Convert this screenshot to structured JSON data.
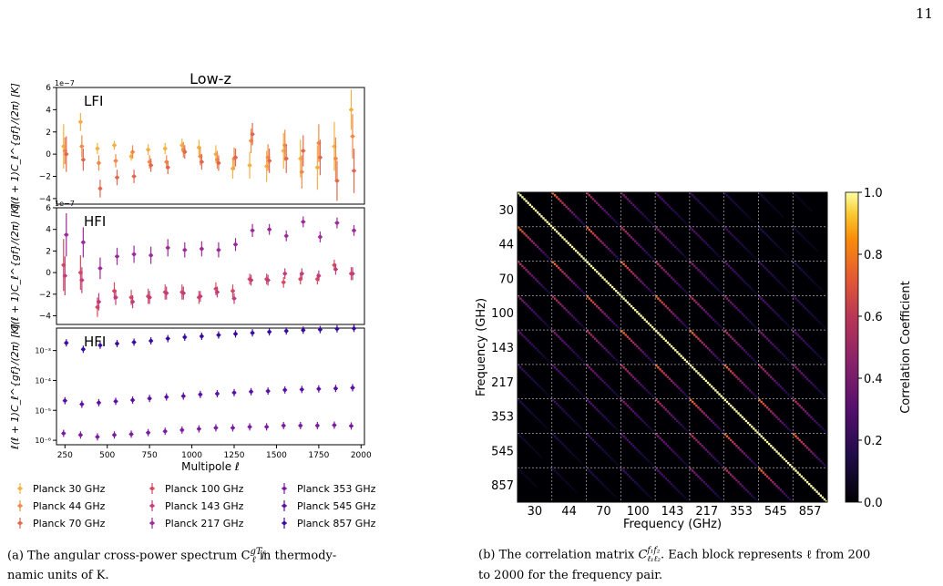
{
  "page": {
    "number": "11"
  },
  "colors": {
    "p30": "#f5b043",
    "p44": "#f08a47",
    "p70": "#e0684f",
    "p100": "#d34a5f",
    "p143": "#c03c7c",
    "p217": "#9d2a9b",
    "p353": "#7b1aa2",
    "p545": "#5a0ea5",
    "p857": "#3a0aa0"
  },
  "left_figure": {
    "title": "Low-z",
    "panels": [
      {
        "label": "LFI",
        "exp": "1e−7",
        "ylabel": "ℓ(ℓ + 1)C_ℓ^{gf}/(2π) [K]"
      },
      {
        "label": "HFI",
        "exp": "1e−7",
        "ylabel": "ℓ(ℓ + 1)C_ℓ^{gf}/(2π) [K]"
      },
      {
        "label": "HFI",
        "exp": "",
        "ylabel": "ℓ(ℓ + 1)C_ℓ^{gf}/(2π) [K]"
      }
    ],
    "xlabel": "Multipole ℓ",
    "legend": [
      "Planck 30 GHz",
      "Planck 44 GHz",
      "Planck 70 GHz",
      "Planck 100 GHz",
      "Planck 143 GHz",
      "Planck 217 GHz",
      "Planck 353 GHz",
      "Planck 545 GHz",
      "Planck 857 GHz"
    ]
  },
  "right_figure": {
    "xlabel": "Frequency (GHz)",
    "ylabel": "Frequency (GHz)",
    "colorbar_label": "Correlation Coefficient",
    "freq_labels": [
      "30",
      "44",
      "70",
      "100",
      "143",
      "217",
      "353",
      "545",
      "857"
    ]
  },
  "captions": {
    "a_line1": "(a)  The angular cross-power spectrum C",
    "a_sym_sup": "gT",
    "a_sym_sup_sub": "f",
    "a_sym_sub": "ℓ",
    "a_line1_end": " in thermody-",
    "a_line2": "namic units of K.",
    "b_line1": "(b)  The correlation matrix ",
    "b_sym": "C",
    "b_sym_sup": "f₁f₂",
    "b_sym_sub": "ℓ₁ℓ₂",
    "b_line1_end": ". Each block represents ℓ from 200",
    "b_line2": "to 2000 for the frequency pair."
  },
  "chart_data": [
    {
      "type": "scatter",
      "title": "Low-z",
      "xlabel": "Multipole ℓ",
      "xlim": [
        200,
        2020
      ],
      "x_ticks": [
        250,
        500,
        750,
        1000,
        1250,
        1500,
        1750,
        2000
      ],
      "x": [
        250,
        350,
        450,
        550,
        650,
        750,
        850,
        950,
        1050,
        1150,
        1250,
        1350,
        1450,
        1550,
        1650,
        1750,
        1850,
        1950
      ],
      "panels": [
        {
          "label": "LFI",
          "scale": "1e-7",
          "ylim": [
            -4.5,
            6
          ],
          "y_ticks": [
            -4,
            -2,
            0,
            2,
            4,
            6
          ],
          "series": [
            {
              "name": "Planck 30 GHz",
              "color": "#f5b043",
              "values": [
                0.7,
                2.9,
                0.5,
                0.8,
                -0.2,
                0.4,
                0.5,
                0.8,
                0.6,
                0.0,
                -1.3,
                -1.0,
                -1.1,
                0.3,
                -0.4,
                -1.2,
                0.7,
                4.0
              ],
              "errors": [
                2.0,
                0.8,
                0.5,
                0.4,
                0.4,
                0.5,
                0.5,
                0.6,
                0.7,
                0.8,
                0.9,
                1.2,
                1.4,
                1.6,
                1.7,
                2.0,
                2.2,
                1.8
              ]
            },
            {
              "name": "Planck 44 GHz",
              "color": "#f08a47",
              "values": [
                0.3,
                0.7,
                -0.8,
                -0.6,
                0.2,
                -0.7,
                -0.7,
                0.4,
                -0.2,
                -0.5,
                -0.4,
                1.2,
                -0.3,
                0.8,
                -1.6,
                1.0,
                -0.4,
                1.6
              ],
              "errors": [
                1.2,
                1.0,
                0.7,
                0.6,
                0.6,
                0.6,
                0.6,
                0.7,
                0.8,
                0.8,
                1.0,
                1.1,
                1.2,
                1.4,
                1.5,
                1.7,
                1.9,
                2.0
              ]
            },
            {
              "name": "Planck 70 GHz",
              "color": "#e0684f",
              "values": [
                0.0,
                -0.5,
                -3.1,
                -2.1,
                -2.0,
                -1.0,
                -1.2,
                0.2,
                -0.7,
                -0.8,
                -0.3,
                1.8,
                -0.6,
                -0.4,
                0.3,
                -0.3,
                -2.4,
                -1.5
              ],
              "errors": [
                1.6,
                1.0,
                0.8,
                0.7,
                0.6,
                0.6,
                0.6,
                0.6,
                0.7,
                0.7,
                0.8,
                1.0,
                1.1,
                1.3,
                1.4,
                1.6,
                1.8,
                2.0
              ]
            }
          ]
        },
        {
          "label": "HFI",
          "scale": "1e-7",
          "ylim": [
            -4.8,
            6
          ],
          "y_ticks": [
            -4,
            -2,
            0,
            2,
            4,
            6
          ],
          "series": [
            {
              "name": "Planck 100 GHz",
              "color": "#d34a5f",
              "values": [
                0.7,
                0.0,
                -3.2,
                -1.7,
                -2.3,
                -2.2,
                -1.8,
                -1.8,
                -2.3,
                -1.5,
                -1.7,
                -0.6,
                -0.6,
                -0.9,
                -0.6,
                -0.6,
                0.7,
                -0.1
              ],
              "errors": [
                2.4,
                1.6,
                0.9,
                0.8,
                0.7,
                0.7,
                0.7,
                0.7,
                0.6,
                0.6,
                0.6,
                0.5,
                0.5,
                0.5,
                0.5,
                0.5,
                0.5,
                0.6
              ]
            },
            {
              "name": "Planck 143 GHz",
              "color": "#c03c7c",
              "values": [
                -0.3,
                -0.7,
                -2.7,
                -2.3,
                -2.7,
                -2.3,
                -1.9,
                -1.9,
                -2.2,
                -1.8,
                -2.4,
                -0.7,
                -0.7,
                -0.1,
                -0.1,
                -0.3,
                0.3,
                -0.1
              ],
              "errors": [
                1.8,
                1.2,
                0.8,
                0.7,
                0.6,
                0.6,
                0.6,
                0.6,
                0.5,
                0.5,
                0.5,
                0.5,
                0.5,
                0.5,
                0.5,
                0.5,
                0.5,
                0.6
              ]
            },
            {
              "name": "Planck 217 GHz",
              "color": "#9d2a9b",
              "values": [
                3.5,
                2.8,
                0.4,
                1.5,
                1.7,
                1.6,
                2.3,
                2.1,
                2.2,
                2.1,
                2.6,
                3.9,
                4.0,
                3.4,
                4.7,
                3.3,
                4.6,
                3.9
              ],
              "errors": [
                2.0,
                1.4,
                1.0,
                0.8,
                0.8,
                0.8,
                0.8,
                0.7,
                0.7,
                0.7,
                0.6,
                0.6,
                0.5,
                0.5,
                0.5,
                0.5,
                0.5,
                0.5
              ]
            }
          ]
        },
        {
          "label": "HFI",
          "scale": "log",
          "ylim_log10": [
            -6.15,
            -2.25
          ],
          "y_tick_labels": [
            "10⁻³",
            "10⁻⁴",
            "10⁻⁵",
            "10⁻⁶"
          ],
          "series": [
            {
              "name": "Planck 353 GHz",
              "color": "#7b1aa2",
              "values": [
                1.7e-06,
                1.5e-06,
                1.3e-06,
                1.5e-06,
                1.6e-06,
                1.8e-06,
                2e-06,
                2.2e-06,
                2.4e-06,
                2.6e-06,
                2.6e-06,
                2.8e-06,
                2.8e-06,
                3.1e-06,
                3.1e-06,
                3.1e-06,
                3.2e-06,
                3e-06
              ]
            },
            {
              "name": "Planck 545 GHz",
              "color": "#5a0ea5",
              "values": [
                2.1e-05,
                1.6e-05,
                1.8e-05,
                2e-05,
                2.2e-05,
                2.5e-05,
                2.8e-05,
                3e-05,
                3.4e-05,
                3.6e-05,
                3.9e-05,
                4.2e-05,
                4.4e-05,
                4.8e-05,
                5e-05,
                5.2e-05,
                5.4e-05,
                5.7e-05
              ]
            },
            {
              "name": "Planck 857 GHz",
              "color": "#3a0aa0",
              "values": [
                0.0018,
                0.0011,
                0.0015,
                0.0017,
                0.0019,
                0.0021,
                0.0025,
                0.0028,
                0.003,
                0.0033,
                0.0036,
                0.0039,
                0.0042,
                0.0045,
                0.0048,
                0.005,
                0.0053,
                0.0055
              ]
            }
          ]
        }
      ]
    },
    {
      "type": "heatmap",
      "xlabel": "Frequency (GHz)",
      "ylabel": "Frequency (GHz)",
      "x_categories": [
        "30",
        "44",
        "70",
        "100",
        "143",
        "217",
        "353",
        "545",
        "857"
      ],
      "y_categories": [
        "30",
        "44",
        "70",
        "100",
        "143",
        "217",
        "353",
        "545",
        "857"
      ],
      "colorbar": {
        "label": "Correlation Coefficient",
        "range": [
          0.0,
          1.0
        ],
        "ticks": [
          "0.0",
          "0.2",
          "0.4",
          "0.6",
          "0.8",
          "1.0"
        ]
      },
      "diagonal_value": 1.0,
      "band_strength_by_frequency_distance": [
        1.0,
        0.8,
        0.6,
        0.45,
        0.33,
        0.25,
        0.18,
        0.12,
        0.08
      ]
    }
  ]
}
